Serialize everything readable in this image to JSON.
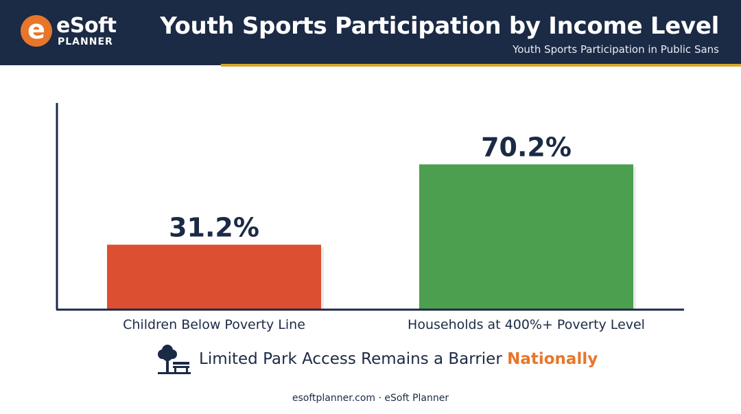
{
  "brand": {
    "logo_letter": "e",
    "name": "eSoft",
    "sub": "PLANNER",
    "accent": "#e8762a",
    "navy": "#1b2a45",
    "rule": "#d6a72c"
  },
  "header": {
    "title": "Youth Sports Participation by Income Level",
    "subtitle": "Youth Sports Participation in Public Sans"
  },
  "chart_data": {
    "type": "bar",
    "categories": [
      "Children Below Poverty Line",
      "Households at 400%+ Poverty Level"
    ],
    "values": [
      31.2,
      70.2
    ],
    "data_labels": [
      "31.2%",
      "70.2%"
    ],
    "colors": [
      "#dc4f31",
      "#4c9f4f"
    ],
    "ylim": [
      0,
      100
    ],
    "grid": false,
    "legend": "none"
  },
  "note": {
    "icon": "park-bench-icon",
    "text": "Limited Park Access Remains a Barrier",
    "highlight": "Nationally"
  },
  "footer": {
    "text": "esoftplanner.com · eSoft Planner"
  }
}
